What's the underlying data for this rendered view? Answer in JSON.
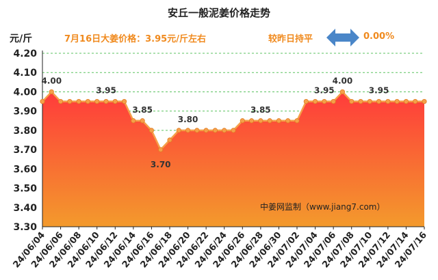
{
  "chart_data": {
    "type": "area",
    "title": "安丘一般泥姜价格走势",
    "ylabel": "元/斤",
    "ylim": [
      3.3,
      4.2
    ],
    "yticks": [
      "4.20",
      "4.10",
      "4.00",
      "3.90",
      "3.80",
      "3.70",
      "3.60",
      "3.50",
      "3.40",
      "3.30"
    ],
    "x": [
      "24/06/04",
      "24/06/05",
      "24/06/06",
      "24/06/07",
      "24/06/08",
      "24/06/09",
      "24/06/10",
      "24/06/11",
      "24/06/12",
      "24/06/13",
      "24/06/14",
      "24/06/15",
      "24/06/16",
      "24/06/17",
      "24/06/18",
      "24/06/19",
      "24/06/20",
      "24/06/21",
      "24/06/22",
      "24/06/23",
      "24/06/24",
      "24/06/25",
      "24/06/26",
      "24/06/27",
      "24/06/28",
      "24/06/29",
      "24/06/30",
      "24/07/01",
      "24/07/02",
      "24/07/03",
      "24/07/04",
      "24/07/05",
      "24/07/06",
      "24/07/07",
      "24/07/08",
      "24/07/09",
      "24/07/10",
      "24/07/11",
      "24/07/12",
      "24/07/13",
      "24/07/14",
      "24/07/15",
      "24/07/16"
    ],
    "xtick_labels": [
      "24/06/04",
      "24/06/06",
      "24/06/08",
      "24/06/10",
      "24/06/12",
      "24/06/14",
      "24/06/16",
      "24/06/18",
      "24/06/20",
      "24/06/22",
      "24/06/24",
      "24/06/26",
      "24/06/28",
      "24/06/30",
      "24/07/02",
      "24/07/04",
      "24/07/06",
      "24/07/08",
      "24/07/10",
      "24/07/12",
      "24/07/14",
      "24/07/16"
    ],
    "values": [
      3.95,
      4.0,
      3.95,
      3.95,
      3.95,
      3.95,
      3.95,
      3.95,
      3.95,
      3.95,
      3.85,
      3.85,
      3.8,
      3.7,
      3.75,
      3.8,
      3.8,
      3.8,
      3.8,
      3.8,
      3.8,
      3.8,
      3.85,
      3.85,
      3.85,
      3.85,
      3.85,
      3.85,
      3.85,
      3.95,
      3.95,
      3.95,
      3.95,
      4.0,
      3.95,
      3.95,
      3.95,
      3.95,
      3.95,
      3.95,
      3.95,
      3.95,
      3.95
    ],
    "data_labels": [
      {
        "index": 1,
        "text": "4.00"
      },
      {
        "index": 7,
        "text": "3.95"
      },
      {
        "index": 11,
        "text": "3.85"
      },
      {
        "index": 13,
        "text": "3.70"
      },
      {
        "index": 16,
        "text": "3.80"
      },
      {
        "index": 24,
        "text": "3.85"
      },
      {
        "index": 31,
        "text": "3.95"
      },
      {
        "index": 33,
        "text": "4.00"
      },
      {
        "index": 37,
        "text": "3.95"
      }
    ],
    "grid": true,
    "colors": {
      "fill_top": "#ff3b3b",
      "fill_bottom": "#f39a2c",
      "line": "#f5a04a",
      "marker": "#f5a04a",
      "grid": "#59c25f",
      "axis": "#222222"
    }
  },
  "header": {
    "unit": "元/斤",
    "price_note": "7月16日大姜价格：3.95元/斤左右",
    "change_label": "较昨日持平",
    "change_value": "0.00%",
    "arrow_icon": "double-arrow-icon",
    "arrow_color": "#4a86c8"
  },
  "watermark": "中姜网监制（www.jiang7.com）"
}
